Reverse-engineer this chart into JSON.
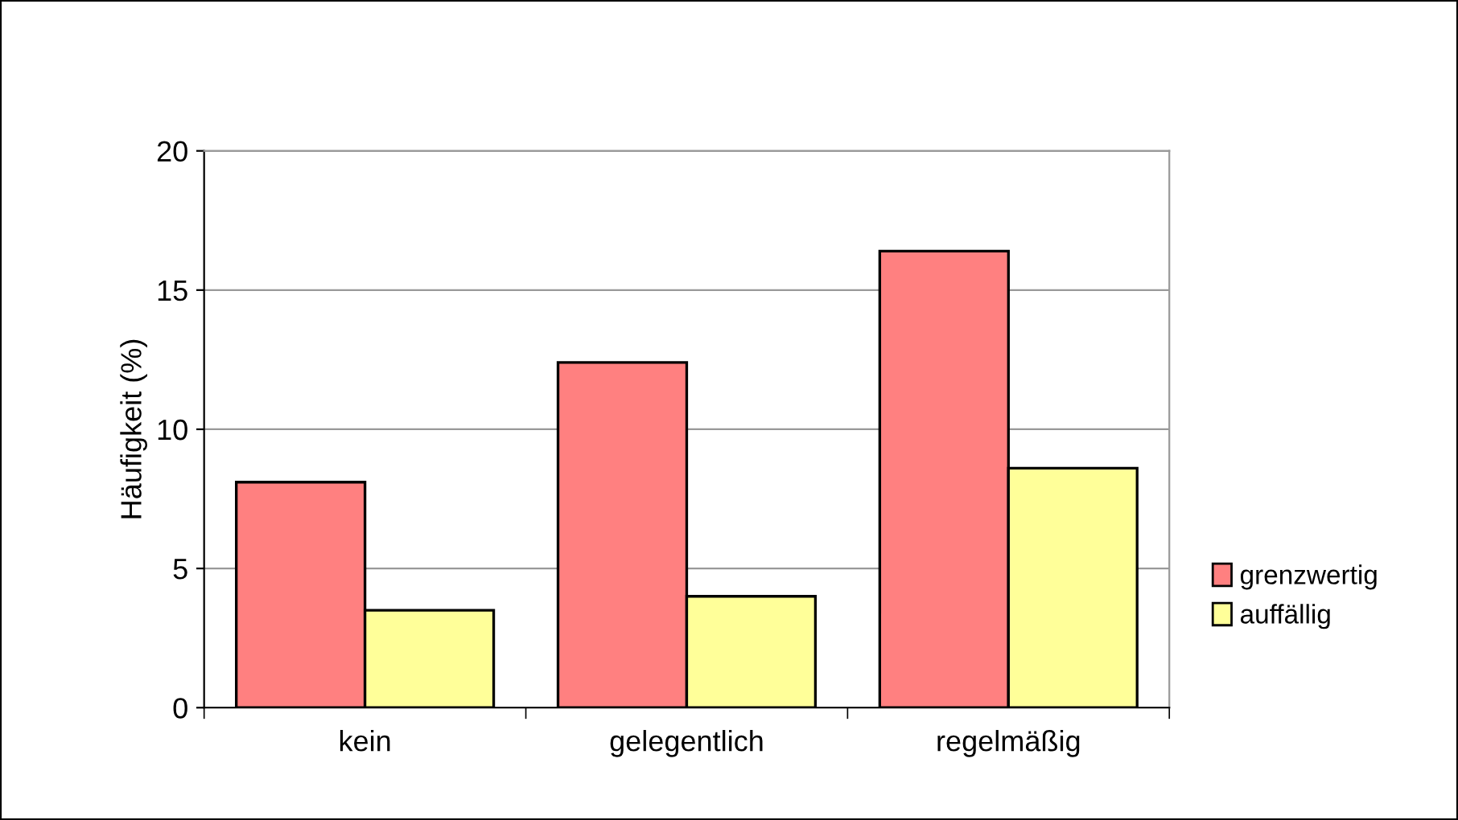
{
  "chart_data": {
    "type": "bar",
    "ylabel": "Häufigkeit (%)",
    "categories": [
      "kein",
      "gelegentlich",
      "regelmäßig"
    ],
    "series": [
      {
        "name": "grenzwertig",
        "color": "#ff8080",
        "values": [
          8.1,
          12.4,
          16.4
        ]
      },
      {
        "name": "auffällig",
        "color": "#ffff99",
        "values": [
          3.5,
          4.0,
          8.6
        ]
      }
    ],
    "ylim": [
      0,
      20
    ],
    "yticks": [
      0,
      5,
      10,
      15,
      20
    ],
    "grid": "y",
    "legend": "right"
  }
}
